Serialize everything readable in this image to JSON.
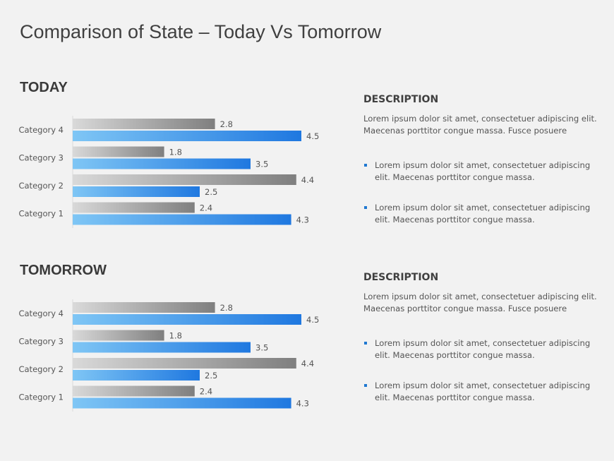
{
  "title": "Comparison of State – Today Vs Tomorrow",
  "colors": {
    "series_gray": [
      "#d9d9d9",
      "#7f7f7f"
    ],
    "series_blue": [
      "#7fc6f5",
      "#1f78e0"
    ],
    "bullet": "#1f78d1"
  },
  "chart_data": [
    {
      "type": "bar",
      "orientation": "horizontal",
      "title": "TODAY",
      "categories": [
        "Category 1",
        "Category 2",
        "Category 3",
        "Category 4"
      ],
      "series": [
        {
          "values": [
            2.4,
            4.4,
            1.8,
            2.8
          ],
          "color": "gray"
        },
        {
          "values": [
            4.3,
            2.5,
            3.5,
            4.5
          ],
          "color": "blue"
        }
      ],
      "xlim": [
        0,
        4.5
      ],
      "data_labels": true,
      "grid": false
    },
    {
      "type": "bar",
      "orientation": "horizontal",
      "title": "TOMORROW",
      "categories": [
        "Category 1",
        "Category 2",
        "Category 3",
        "Category 4"
      ],
      "series": [
        {
          "values": [
            2.4,
            4.4,
            1.8,
            2.8
          ],
          "color": "gray"
        },
        {
          "values": [
            4.3,
            2.5,
            3.5,
            4.5
          ],
          "color": "blue"
        }
      ],
      "xlim": [
        0,
        4.5
      ],
      "data_labels": true,
      "grid": false
    }
  ],
  "descriptions": [
    {
      "heading": "DESCRIPTION",
      "text": "Lorem ipsum dolor sit amet, consectetuer adipiscing elit. Maecenas porttitor  congue massa. Fusce posuere",
      "bullets": [
        "Lorem ipsum dolor sit amet, consectetuer adipiscing elit. Maecenas porttitor  congue massa.",
        "Lorem ipsum dolor sit amet, consectetuer adipiscing elit. Maecenas porttitor  congue massa."
      ]
    },
    {
      "heading": "DESCRIPTION",
      "text": "Lorem ipsum dolor sit amet, consectetuer adipiscing elit. Maecenas porttitor  congue massa. Fusce posuere",
      "bullets": [
        "Lorem ipsum dolor sit amet, consectetuer adipiscing elit. Maecenas porttitor  congue massa.",
        "Lorem ipsum dolor sit amet, consectetuer adipiscing elit. Maecenas porttitor  congue massa."
      ]
    }
  ]
}
